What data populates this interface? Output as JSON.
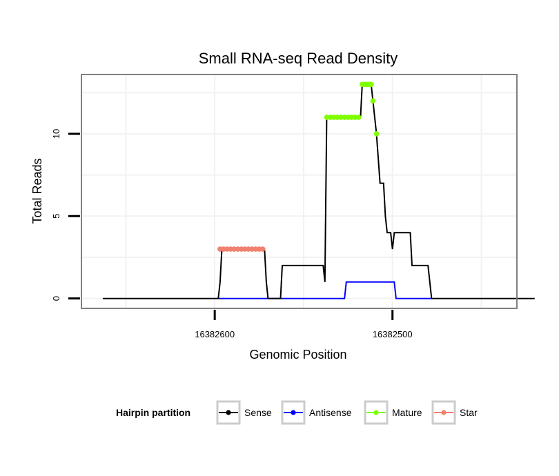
{
  "chart_data": {
    "type": "line",
    "title": "Small RNA-seq Read Density",
    "xlabel": "Genomic Position",
    "ylabel": "Total Reads",
    "x_reversed": true,
    "xlim": [
      16382675,
      16382430
    ],
    "ylim": [
      -0.6,
      13.6
    ],
    "x_ticks": [
      16382600,
      16382500
    ],
    "x_tick_labels": [
      "16382600",
      "16382500"
    ],
    "y_ticks": [
      0,
      5,
      10
    ],
    "y_tick_labels": [
      "0",
      "5",
      "10"
    ],
    "grid": true,
    "legend_position": "bottom",
    "legend_title": "Hairpin partition",
    "legend": [
      {
        "key": "sense",
        "label": "Sense"
      },
      {
        "key": "antisense",
        "label": "Antisense"
      },
      {
        "key": "mature",
        "label": "Mature"
      },
      {
        "key": "star",
        "label": "Star"
      }
    ],
    "colors": {
      "sense": "#000000",
      "antisense": "#0000ff",
      "mature": "#7fff00",
      "star": "#f08070",
      "panel_border": "#7f7f7f",
      "grid": "#f2f2f2",
      "legend_key_border": "#cccccc"
    },
    "series": [
      {
        "key": "sense",
        "name": "Sense",
        "points": [
          [
            16382663,
            0
          ],
          [
            16382598,
            0
          ],
          [
            16382597,
            1
          ],
          [
            16382596,
            3
          ],
          [
            16382572,
            3
          ],
          [
            16382571,
            1
          ],
          [
            16382570,
            0
          ],
          [
            16382563,
            0
          ],
          [
            16382562,
            2
          ],
          [
            16382539,
            2
          ],
          [
            16382538,
            1
          ],
          [
            16382537,
            11
          ],
          [
            16382518,
            11
          ],
          [
            16382517,
            13
          ],
          [
            16382512,
            13
          ],
          [
            16382511,
            12
          ],
          [
            16382509,
            10
          ],
          [
            16382507,
            7
          ],
          [
            16382505,
            7
          ],
          [
            16382504,
            5
          ],
          [
            16382503,
            4
          ],
          [
            16382501,
            4
          ],
          [
            16382500,
            3
          ],
          [
            16382499,
            4
          ],
          [
            16382490,
            4
          ],
          [
            16382489,
            2
          ],
          [
            16382480,
            2
          ],
          [
            16382479,
            1
          ],
          [
            16382478,
            0
          ],
          [
            16382420,
            0
          ]
        ]
      },
      {
        "key": "antisense",
        "name": "Antisense",
        "points": [
          [
            16382598,
            0
          ],
          [
            16382527,
            0
          ],
          [
            16382526,
            1
          ],
          [
            16382499,
            1
          ],
          [
            16382498,
            0
          ],
          [
            16382478,
            0
          ]
        ]
      },
      {
        "key": "mature",
        "name": "Mature",
        "points": [
          [
            16382537,
            11
          ],
          [
            16382535,
            11
          ],
          [
            16382533,
            11
          ],
          [
            16382531,
            11
          ],
          [
            16382529,
            11
          ],
          [
            16382527,
            11
          ],
          [
            16382525,
            11
          ],
          [
            16382523,
            11
          ],
          [
            16382521,
            11
          ],
          [
            16382519,
            11
          ],
          [
            16382517,
            13
          ],
          [
            16382516,
            13
          ],
          [
            16382515,
            13
          ],
          [
            16382514,
            13
          ],
          [
            16382513,
            13
          ],
          [
            16382512,
            13
          ],
          [
            16382511,
            12
          ],
          [
            16382509,
            10
          ]
        ]
      },
      {
        "key": "star",
        "name": "Star",
        "points": [
          [
            16382597,
            3
          ],
          [
            16382595,
            3
          ],
          [
            16382593,
            3
          ],
          [
            16382591,
            3
          ],
          [
            16382589,
            3
          ],
          [
            16382587,
            3
          ],
          [
            16382585,
            3
          ],
          [
            16382583,
            3
          ],
          [
            16382581,
            3
          ],
          [
            16382579,
            3
          ],
          [
            16382577,
            3
          ],
          [
            16382575,
            3
          ],
          [
            16382573,
            3
          ]
        ]
      }
    ]
  }
}
